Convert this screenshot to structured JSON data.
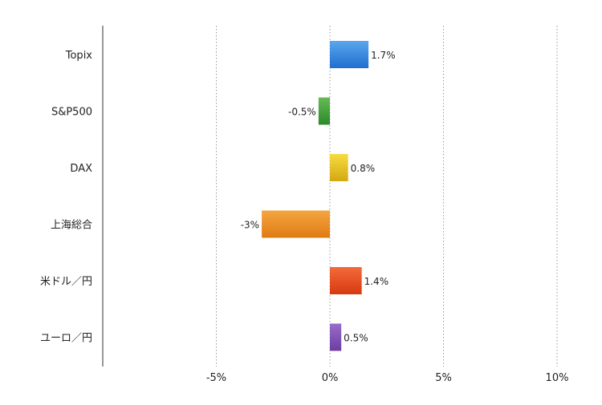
{
  "chart_data": {
    "type": "bar",
    "orientation": "horizontal",
    "categories": [
      "Topix",
      "S&P500",
      "DAX",
      "上海総合",
      "米ドル／円",
      "ユーロ／円"
    ],
    "values": [
      1.7,
      -0.5,
      0.8,
      -3,
      1.4,
      0.5
    ],
    "data_labels": [
      "1.7%",
      "-0.5%",
      "0.8%",
      "-3%",
      "1.4%",
      "0.5%"
    ],
    "bar_colors": [
      [
        "#5aa6ee",
        "#1f6fd0"
      ],
      [
        "#66bb55",
        "#2a8a2a"
      ],
      [
        "#f5dc40",
        "#d4a812"
      ],
      [
        "#f4a640",
        "#e07a12"
      ],
      [
        "#f46a3a",
        "#d63a10"
      ],
      [
        "#9a6bc8",
        "#6a3fa0"
      ]
    ],
    "x_ticks": [
      -5,
      0,
      5,
      10
    ],
    "x_tick_labels": [
      "-5%",
      "0%",
      "5%",
      "10%"
    ],
    "xlim": [
      -10,
      10
    ],
    "grid": "vertical-dotted",
    "title": "",
    "xlabel": "",
    "ylabel": ""
  }
}
